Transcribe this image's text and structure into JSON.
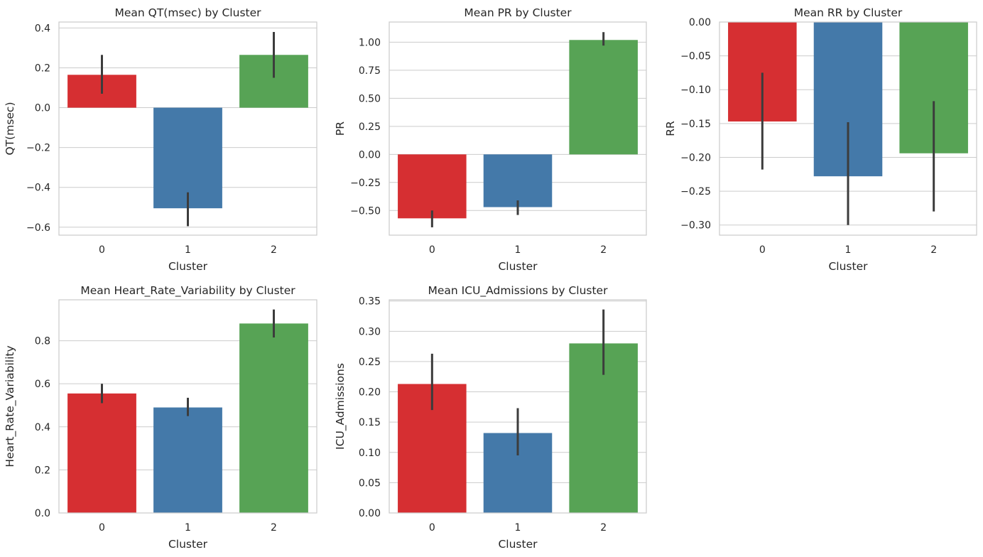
{
  "figure": {
    "background": "#ffffff"
  },
  "palette": {
    "0": "#d62f32",
    "1": "#4479a9",
    "2": "#57a355"
  },
  "colors": {
    "grid": "#cccccc",
    "spine": "#cccccc",
    "errorbar": "#3c3c3c",
    "text": "#262626"
  },
  "chart_data": [
    {
      "type": "bar",
      "title": "Mean QT(msec) by Cluster",
      "xlabel": "Cluster",
      "ylabel": "QT(msec)",
      "categories": [
        "0",
        "1",
        "2"
      ],
      "values": [
        0.165,
        -0.505,
        0.265
      ],
      "ci_low": [
        0.07,
        -0.595,
        0.15
      ],
      "ci_high": [
        0.265,
        -0.425,
        0.38
      ],
      "ylim": [
        -0.64,
        0.43
      ],
      "yticks": [
        -0.6,
        -0.4,
        -0.2,
        0.0,
        0.2,
        0.4
      ],
      "ytick_labels": [
        "−0.6",
        "−0.4",
        "−0.2",
        "0.0",
        "0.2",
        "0.4"
      ],
      "grid": true
    },
    {
      "type": "bar",
      "title": "Mean PR by Cluster",
      "xlabel": "Cluster",
      "ylabel": "PR",
      "categories": [
        "0",
        "1",
        "2"
      ],
      "values": [
        -0.57,
        -0.47,
        1.02
      ],
      "ci_low": [
        -0.65,
        -0.54,
        0.97
      ],
      "ci_high": [
        -0.5,
        -0.41,
        1.09
      ],
      "ylim": [
        -0.72,
        1.18
      ],
      "yticks": [
        -0.5,
        -0.25,
        0.0,
        0.25,
        0.5,
        0.75,
        1.0
      ],
      "ytick_labels": [
        "−0.50",
        "−0.25",
        "0.00",
        "0.25",
        "0.50",
        "0.75",
        "1.00"
      ],
      "grid": true
    },
    {
      "type": "bar",
      "title": "Mean RR by Cluster",
      "xlabel": "Cluster",
      "ylabel": "RR",
      "categories": [
        "0",
        "1",
        "2"
      ],
      "values": [
        -0.147,
        -0.228,
        -0.194
      ],
      "ci_low": [
        -0.218,
        -0.3,
        -0.28
      ],
      "ci_high": [
        -0.075,
        -0.148,
        -0.117
      ],
      "ylim": [
        -0.315,
        0.0
      ],
      "yticks": [
        -0.3,
        -0.25,
        -0.2,
        -0.15,
        -0.1,
        -0.05,
        0.0
      ],
      "ytick_labels": [
        "−0.30",
        "−0.25",
        "−0.20",
        "−0.15",
        "−0.10",
        "−0.05",
        "0.00"
      ],
      "grid": true
    },
    {
      "type": "bar",
      "title": "Mean Heart_Rate_Variability by Cluster",
      "xlabel": "Cluster",
      "ylabel": "Heart_Rate_Variability",
      "categories": [
        "0",
        "1",
        "2"
      ],
      "values": [
        0.555,
        0.49,
        0.88
      ],
      "ci_low": [
        0.51,
        0.45,
        0.815
      ],
      "ci_high": [
        0.6,
        0.535,
        0.945
      ],
      "ylim": [
        0.0,
        0.99
      ],
      "yticks": [
        0.0,
        0.2,
        0.4,
        0.6,
        0.8
      ],
      "ytick_labels": [
        "0.0",
        "0.2",
        "0.4",
        "0.6",
        "0.8"
      ],
      "grid": true
    },
    {
      "type": "bar",
      "title": "Mean ICU_Admissions by Cluster",
      "xlabel": "Cluster",
      "ylabel": "ICU_Admissions",
      "categories": [
        "0",
        "1",
        "2"
      ],
      "values": [
        0.213,
        0.132,
        0.28
      ],
      "ci_low": [
        0.17,
        0.095,
        0.228
      ],
      "ci_high": [
        0.263,
        0.173,
        0.336
      ],
      "ylim": [
        0.0,
        0.352
      ],
      "yticks": [
        0.0,
        0.05,
        0.1,
        0.15,
        0.2,
        0.25,
        0.3,
        0.35
      ],
      "ytick_labels": [
        "0.00",
        "0.05",
        "0.10",
        "0.15",
        "0.20",
        "0.25",
        "0.30",
        "0.35"
      ],
      "grid": true
    }
  ]
}
